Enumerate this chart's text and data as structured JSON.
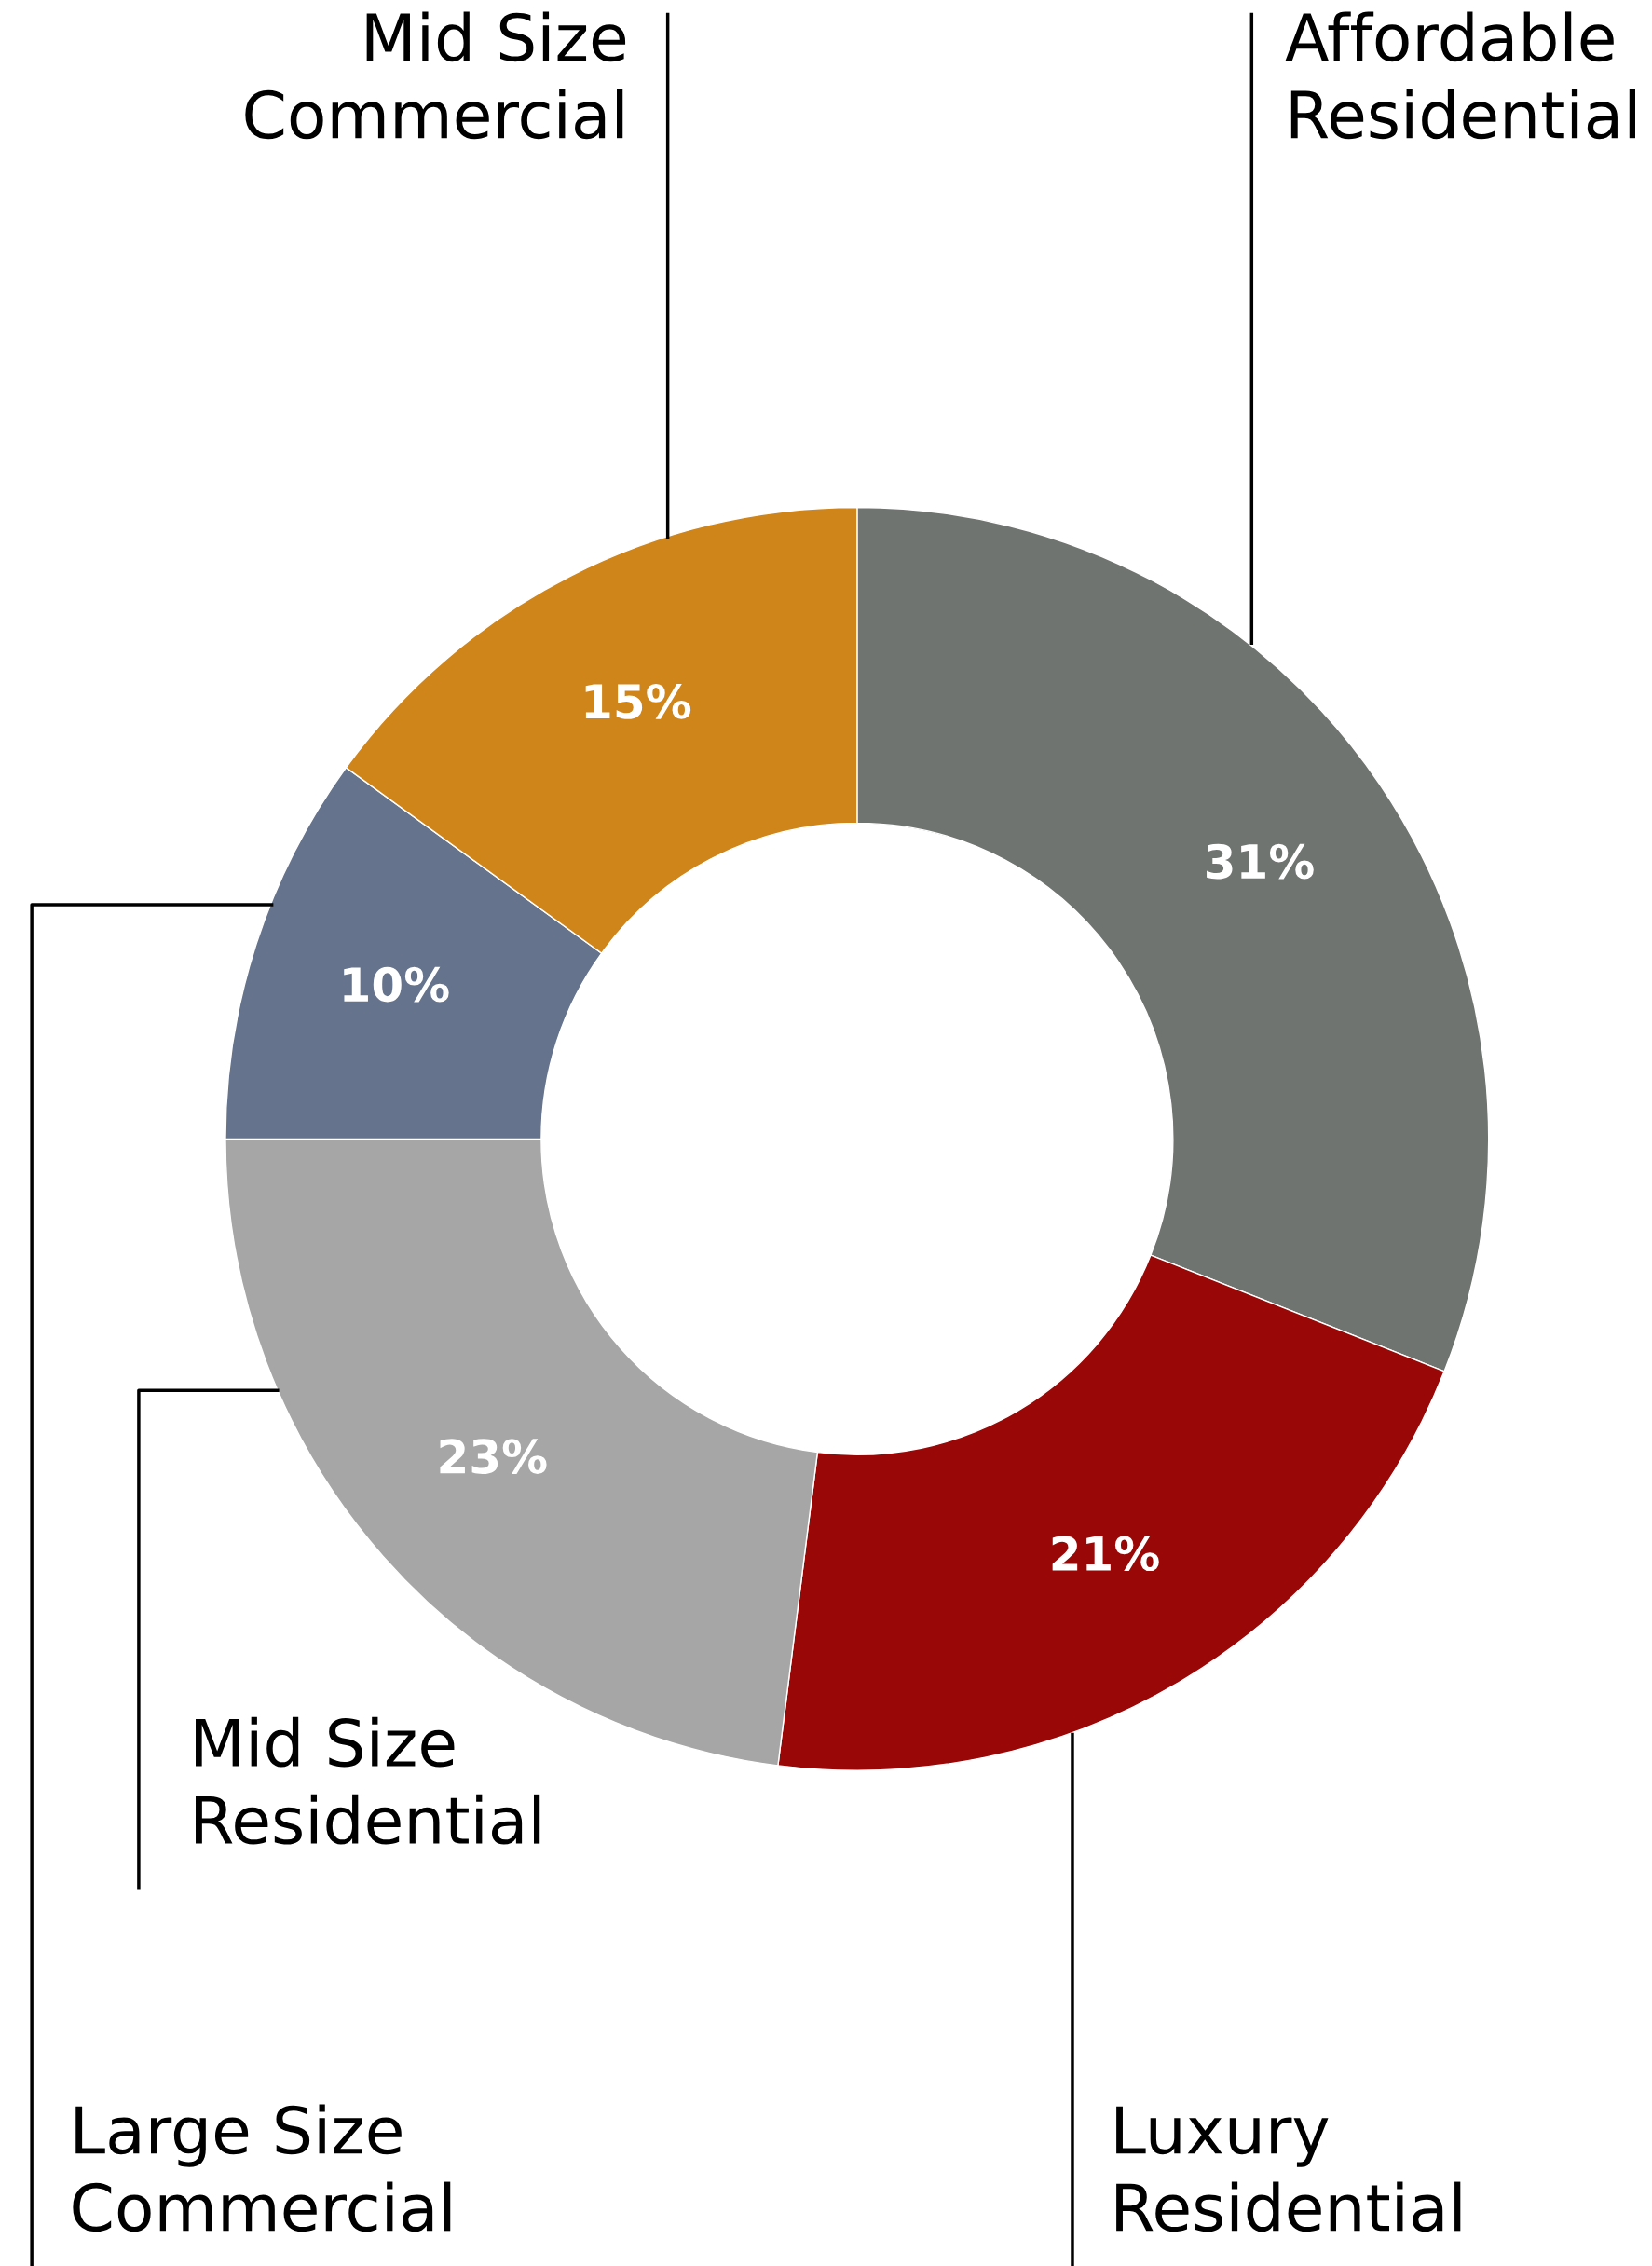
{
  "chart_data": {
    "type": "donut",
    "categories": [
      "Affordable\nResidential",
      "Luxury\nResidential",
      "Mid Size\nResidential",
      "Large Size\nCommercial",
      "Mid Size\nCommercial"
    ],
    "values": [
      31,
      21,
      23,
      10,
      15
    ],
    "colors": [
      "#6f7471",
      "#990707",
      "#a6a6a6",
      "#66738c",
      "#cf8519"
    ],
    "value_labels": [
      "31%",
      "21%",
      "23%",
      "10%",
      "15%"
    ]
  }
}
